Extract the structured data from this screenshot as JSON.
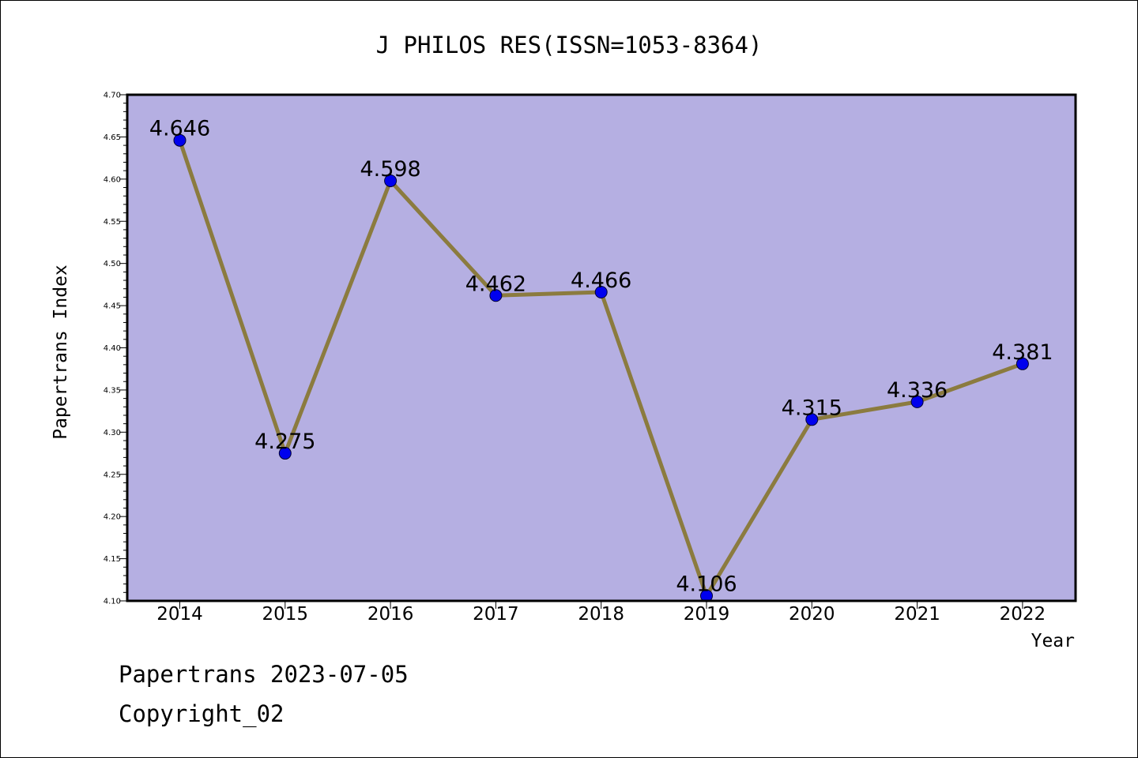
{
  "chart_data": {
    "type": "line",
    "title": "J PHILOS RES(ISSN=1053-8364)",
    "xlabel": "Year",
    "ylabel": "Papertrans Index",
    "categories": [
      "2014",
      "2015",
      "2016",
      "2017",
      "2018",
      "2019",
      "2020",
      "2021",
      "2022"
    ],
    "values": [
      4.646,
      4.275,
      4.598,
      4.462,
      4.466,
      4.106,
      4.315,
      4.336,
      4.381
    ],
    "data_labels": [
      "4.646",
      "4.275",
      "4.598",
      "4.462",
      "4.466",
      "4.106",
      "4.315",
      "4.336",
      "4.381"
    ],
    "ylim": [
      4.1,
      4.7
    ],
    "yticks": [
      "4.10",
      "4.15",
      "4.20",
      "4.25",
      "4.30",
      "4.35",
      "4.40",
      "4.45",
      "4.50",
      "4.55",
      "4.60",
      "4.65",
      "4.70"
    ],
    "grid": false,
    "colors": {
      "plot_background": "#b5afe2",
      "line": "#8b7b3f",
      "marker": "#0000ee"
    }
  },
  "footer": {
    "line1": "Papertrans 2023-07-05",
    "line2": "Copyright_02"
  }
}
